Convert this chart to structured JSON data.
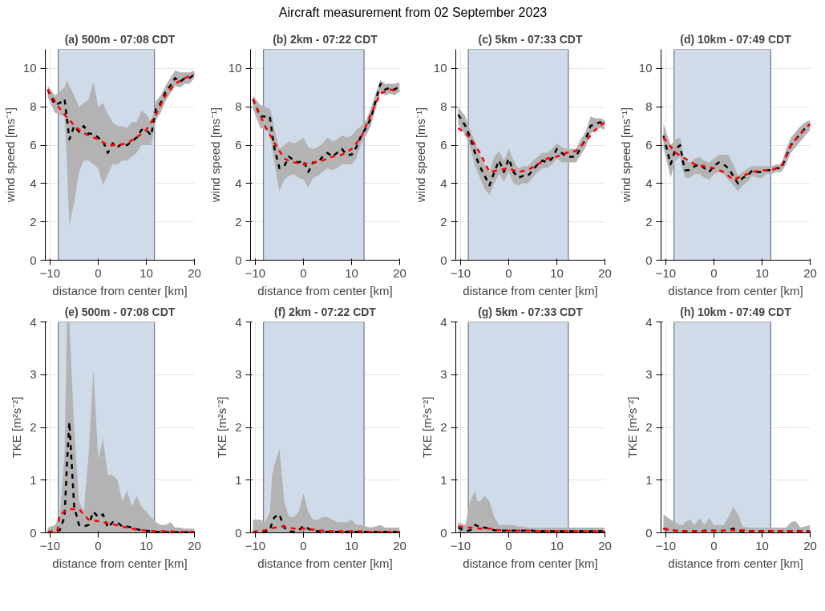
{
  "chart_data": [
    {
      "type": "line",
      "title": "(a) 500m - 07:08 CDT",
      "annotations": [
        "Aircraft measurement from 02 September 2023"
      ],
      "xlabel": "distance from center [km]",
      "ylabel": "wind speed [ms⁻¹]",
      "xlim": [
        -11,
        20
      ],
      "ylim": [
        0,
        11
      ],
      "xticks": [
        -10,
        0,
        10,
        20
      ],
      "yticks": [
        0,
        2,
        4,
        6,
        8,
        10
      ],
      "grid": true,
      "line_style": "dashed",
      "x": [
        -10.5,
        -9,
        -8,
        -7,
        -6.5,
        -6,
        -5,
        -4,
        -3,
        -2,
        -1,
        0,
        1,
        2,
        3,
        4,
        5,
        6,
        7,
        8,
        9,
        10,
        11,
        12,
        13,
        14,
        15,
        16,
        17,
        18,
        19,
        20
      ],
      "bands": [
        {
          "axis": "x",
          "from": -8.3,
          "to": 11.7,
          "color": "#d0dbea"
        }
      ],
      "series": [
        {
          "color": "#000000",
          "values": [
            8.9,
            8.1,
            8.2,
            8.4,
            7.4,
            6.3,
            7.0,
            6.7,
            7.0,
            6.6,
            6.6,
            6.4,
            6.2,
            5.6,
            6.1,
            5.9,
            6.1,
            6.0,
            6.2,
            6.4,
            6.8,
            6.8,
            6.5,
            7.9,
            8.2,
            8.8,
            9.1,
            9.5,
            9.3,
            9.5,
            9.5,
            9.7
          ],
          "lower": [
            8.5,
            7.7,
            7.6,
            7.5,
            5.0,
            1.8,
            3.0,
            4.6,
            5.2,
            5.2,
            5.0,
            4.8,
            3.9,
            4.5,
            5.0,
            5.0,
            5.2,
            5.2,
            5.4,
            5.6,
            6.0,
            6.0,
            6.0,
            7.3,
            7.7,
            8.3,
            8.7,
            9.1,
            9.0,
            9.2,
            9.2,
            9.5
          ],
          "upper": [
            9.1,
            8.6,
            8.8,
            9.0,
            9.4,
            9.1,
            8.6,
            8.0,
            8.2,
            8.4,
            9.3,
            8.0,
            8.2,
            7.6,
            7.2,
            7.0,
            7.0,
            6.9,
            7.2,
            7.2,
            7.8,
            7.6,
            7.2,
            8.3,
            8.6,
            9.1,
            9.5,
            9.9,
            9.8,
            9.8,
            9.8,
            9.9
          ]
        },
        {
          "color": "#ff0000",
          "x": [
            -10.5,
            -8,
            -6,
            -4,
            -2,
            0,
            2,
            4,
            6,
            8,
            10,
            12,
            14,
            16,
            18,
            20
          ],
          "values": [
            8.9,
            7.9,
            7.3,
            6.8,
            6.5,
            6.3,
            6.0,
            6.0,
            6.1,
            6.4,
            6.8,
            7.6,
            8.6,
            9.2,
            9.5,
            9.7
          ]
        }
      ]
    },
    {
      "type": "line",
      "title": "(b) 2km - 07:22 CDT",
      "xlabel": "distance from center [km]",
      "ylabel": "wind speed [ms⁻¹]",
      "xlim": [
        -11,
        20
      ],
      "ylim": [
        0,
        11
      ],
      "xticks": [
        -10,
        0,
        10,
        20
      ],
      "yticks": [
        0,
        2,
        4,
        6,
        8,
        10
      ],
      "grid": true,
      "line_style": "dashed",
      "x": [
        -10.5,
        -9,
        -8,
        -7,
        -6.5,
        -6,
        -5,
        -4,
        -3,
        -2,
        -1,
        0,
        1,
        2,
        3,
        4,
        5,
        6,
        7,
        8,
        9,
        10,
        11,
        12,
        13,
        14,
        15,
        16,
        17,
        18,
        19,
        20
      ],
      "bands": [
        {
          "axis": "x",
          "from": -8.3,
          "to": 12.6,
          "color": "#d0dbea"
        }
      ],
      "series": [
        {
          "color": "#000000",
          "values": [
            8.4,
            7.5,
            7.5,
            7.5,
            6.6,
            5.8,
            4.8,
            4.9,
            5.4,
            5.2,
            5.1,
            5.2,
            4.6,
            5.1,
            5.1,
            5.4,
            5.6,
            5.4,
            5.6,
            5.8,
            5.5,
            5.5,
            5.9,
            6.5,
            6.9,
            7.4,
            8.3,
            9.2,
            8.9,
            9.0,
            8.9,
            9.1
          ],
          "lower": [
            7.9,
            6.9,
            6.8,
            6.6,
            5.8,
            5.0,
            3.6,
            4.2,
            4.4,
            4.5,
            4.3,
            4.2,
            3.8,
            4.3,
            4.4,
            4.6,
            4.8,
            4.7,
            4.8,
            5.0,
            5.0,
            5.0,
            5.3,
            6.1,
            6.5,
            7.0,
            7.9,
            8.8,
            8.6,
            8.7,
            8.6,
            8.8
          ],
          "upper": [
            8.6,
            8.1,
            8.0,
            7.9,
            7.5,
            6.8,
            5.8,
            6.0,
            6.2,
            6.1,
            6.2,
            6.4,
            5.9,
            5.8,
            5.9,
            6.1,
            6.4,
            6.2,
            6.3,
            6.5,
            6.4,
            6.5,
            6.8,
            7.0,
            7.3,
            7.9,
            8.7,
            9.4,
            9.2,
            9.2,
            9.2,
            9.3
          ]
        },
        {
          "color": "#ff0000",
          "x": [
            -10.5,
            -8,
            -6,
            -4,
            -2,
            0,
            2,
            4,
            6,
            8,
            10,
            12,
            14,
            16,
            18,
            20
          ],
          "values": [
            8.4,
            7.0,
            6.1,
            5.3,
            5.1,
            5.0,
            5.1,
            5.2,
            5.4,
            5.5,
            5.8,
            6.4,
            7.6,
            8.7,
            8.9,
            8.8
          ]
        }
      ]
    },
    {
      "type": "line",
      "title": "(c) 5km - 07:33 CDT",
      "xlabel": "distance from center [km]",
      "ylabel": "wind speed [ms⁻¹]",
      "xlim": [
        -11,
        20
      ],
      "ylim": [
        0,
        11
      ],
      "xticks": [
        -10,
        0,
        10,
        20
      ],
      "yticks": [
        0,
        2,
        4,
        6,
        8,
        10
      ],
      "grid": true,
      "line_style": "dashed",
      "x": [
        -10.5,
        -9,
        -8,
        -7,
        -6.5,
        -6,
        -5,
        -4,
        -3,
        -2,
        -1,
        0,
        1,
        2,
        3,
        4,
        5,
        6,
        7,
        8,
        9,
        10,
        11,
        12,
        13,
        14,
        15,
        16,
        17,
        18,
        19,
        20
      ],
      "bands": [
        {
          "axis": "x",
          "from": -8.4,
          "to": 12.4,
          "color": "#d0dbea"
        }
      ],
      "series": [
        {
          "color": "#000000",
          "values": [
            7.6,
            7.0,
            6.4,
            5.6,
            5.2,
            4.9,
            4.4,
            3.9,
            4.6,
            5.2,
            4.6,
            5.3,
            4.6,
            4.3,
            4.4,
            4.4,
            4.7,
            5.0,
            5.2,
            5.1,
            5.3,
            5.8,
            5.6,
            5.4,
            5.4,
            5.4,
            5.9,
            6.3,
            7.0,
            7.1,
            7.2,
            7.0
          ],
          "lower": [
            7.1,
            6.5,
            5.9,
            4.9,
            4.6,
            4.3,
            3.7,
            3.4,
            4.0,
            4.5,
            4.1,
            4.6,
            4.0,
            3.9,
            4.0,
            4.0,
            4.3,
            4.6,
            4.8,
            4.8,
            5.0,
            5.3,
            5.1,
            5.1,
            5.1,
            5.1,
            5.5,
            5.9,
            6.6,
            6.8,
            6.9,
            6.8
          ],
          "upper": [
            8.0,
            7.5,
            6.8,
            6.2,
            5.8,
            5.5,
            5.0,
            4.6,
            5.4,
            5.7,
            5.2,
            5.8,
            5.2,
            4.8,
            4.9,
            4.9,
            5.2,
            5.4,
            5.6,
            5.6,
            5.8,
            6.1,
            5.9,
            5.8,
            5.8,
            5.8,
            6.3,
            6.7,
            7.5,
            7.4,
            7.4,
            7.3
          ]
        },
        {
          "color": "#ff0000",
          "x": [
            -10.5,
            -8,
            -6,
            -4,
            -2,
            0,
            2,
            4,
            6,
            8,
            10,
            12,
            14,
            16,
            18,
            20
          ],
          "values": [
            6.9,
            6.4,
            5.6,
            4.6,
            4.7,
            4.8,
            4.6,
            4.7,
            5.0,
            5.3,
            5.4,
            5.6,
            5.7,
            6.2,
            6.8,
            7.2
          ]
        }
      ]
    },
    {
      "type": "line",
      "title": "(d) 10km - 07:49 CDT",
      "xlabel": "distance from center [km]",
      "ylabel": "wind speed [ms⁻¹]",
      "xlim": [
        -11,
        20
      ],
      "ylim": [
        0,
        11
      ],
      "xticks": [
        -10,
        0,
        10,
        20
      ],
      "yticks": [
        0,
        2,
        4,
        6,
        8,
        10
      ],
      "grid": true,
      "line_style": "dashed",
      "x": [
        -10.5,
        -9,
        -8,
        -7,
        -6.5,
        -6,
        -5,
        -4,
        -3,
        -2,
        -1,
        0,
        1,
        2,
        3,
        4,
        5,
        6,
        7,
        8,
        9,
        10,
        11,
        12,
        13,
        14,
        15,
        16,
        17,
        18,
        19,
        20
      ],
      "bands": [
        {
          "axis": "x",
          "from": -8.3,
          "to": 11.8,
          "color": "#d0dbea"
        }
      ],
      "series": [
        {
          "color": "#000000",
          "values": [
            6.5,
            5.0,
            5.8,
            6.0,
            5.2,
            4.7,
            4.7,
            4.9,
            5.0,
            4.8,
            4.6,
            4.9,
            5.1,
            5.0,
            4.8,
            4.4,
            4.0,
            4.3,
            4.4,
            4.7,
            4.6,
            4.6,
            4.7,
            4.7,
            4.8,
            4.8,
            5.4,
            6.0,
            6.3,
            6.6,
            6.9,
            7.1
          ],
          "lower": [
            5.9,
            4.3,
            5.2,
            5.4,
            4.7,
            4.3,
            4.3,
            4.5,
            4.5,
            4.3,
            4.2,
            4.5,
            4.6,
            4.5,
            4.2,
            3.9,
            3.6,
            3.9,
            4.1,
            4.4,
            4.3,
            4.3,
            4.5,
            4.5,
            4.6,
            4.6,
            5.0,
            5.6,
            5.9,
            6.2,
            6.5,
            6.8
          ],
          "upper": [
            7.1,
            6.0,
            6.3,
            6.4,
            5.6,
            5.2,
            5.1,
            5.3,
            5.4,
            5.2,
            5.1,
            5.3,
            5.5,
            5.5,
            5.5,
            5.0,
            4.4,
            4.6,
            4.8,
            4.9,
            4.9,
            4.9,
            4.9,
            4.9,
            5.0,
            5.0,
            5.8,
            6.4,
            6.7,
            7.0,
            7.2,
            7.3
          ]
        },
        {
          "color": "#ff0000",
          "x": [
            -10.5,
            -8,
            -6,
            -4,
            -2,
            0,
            2,
            4,
            6,
            8,
            10,
            12,
            14,
            16,
            18,
            20
          ],
          "values": [
            6.4,
            5.6,
            5.3,
            5.0,
            4.9,
            4.8,
            4.6,
            4.2,
            4.4,
            4.6,
            4.7,
            4.7,
            4.9,
            6.0,
            6.6,
            7.1
          ]
        }
      ]
    },
    {
      "type": "line",
      "title": "(e) 500m - 07:08 CDT",
      "xlabel": "distance from center [km]",
      "ylabel": "TKE [m²s⁻²]",
      "xlim": [
        -11,
        20
      ],
      "ylim": [
        0,
        4
      ],
      "xticks": [
        -10,
        0,
        10,
        20
      ],
      "yticks": [
        0,
        1,
        2,
        3,
        4
      ],
      "grid": true,
      "line_style": "dashed",
      "x": [
        -10.5,
        -9,
        -8,
        -7,
        -6.5,
        -6,
        -5,
        -4,
        -3,
        -2,
        -1,
        0,
        1,
        2,
        3,
        4,
        5,
        6,
        7,
        8,
        9,
        10,
        11,
        12,
        13,
        14,
        15,
        16,
        17,
        18,
        19,
        20
      ],
      "bands": [
        {
          "axis": "x",
          "from": -8.3,
          "to": 11.7,
          "color": "#d0dbea"
        }
      ],
      "series": [
        {
          "color": "#000000",
          "values": [
            0.0,
            0.02,
            0.05,
            0.3,
            1.3,
            2.1,
            0.5,
            0.15,
            0.12,
            0.15,
            0.4,
            0.3,
            0.35,
            0.1,
            0.2,
            0.2,
            0.12,
            0.12,
            0.1,
            0.07,
            0.05,
            0.04,
            0.03,
            0.02,
            0.02,
            0.01,
            0.01,
            0.01,
            0.01,
            0.01,
            0.01,
            0.01
          ],
          "lower": [
            0,
            0,
            0,
            0,
            0,
            0,
            0,
            0,
            0,
            0,
            0,
            0,
            0,
            0,
            0,
            0,
            0,
            0,
            0,
            0,
            0,
            0,
            0,
            0,
            0,
            0,
            0,
            0,
            0,
            0,
            0,
            0
          ],
          "upper": [
            0.1,
            0.15,
            0.3,
            1.5,
            4.0,
            4.0,
            2.0,
            0.6,
            0.4,
            1.5,
            3.1,
            1.4,
            1.8,
            1.1,
            1.1,
            1.0,
            0.6,
            0.8,
            0.5,
            0.7,
            0.5,
            0.4,
            0.3,
            0.2,
            0.15,
            0.15,
            0.2,
            0.1,
            0.1,
            0.08,
            0.08,
            0.08
          ]
        },
        {
          "color": "#ff0000",
          "x": [
            -10.5,
            -8.5,
            -8,
            -6,
            -4,
            -2,
            0,
            2,
            4,
            6,
            8,
            10,
            12,
            14,
            17,
            20
          ],
          "values": [
            0.02,
            0.03,
            0.35,
            0.45,
            0.45,
            0.25,
            0.22,
            0.18,
            0.14,
            0.1,
            0.06,
            0.04,
            0.03,
            0.03,
            0.02,
            0.02
          ]
        }
      ]
    },
    {
      "type": "line",
      "title": "(f) 2km - 07:22 CDT",
      "xlabel": "distance from center [km]",
      "ylabel": "TKE [m²s⁻²]",
      "xlim": [
        -11,
        20
      ],
      "ylim": [
        0,
        4
      ],
      "xticks": [
        -10,
        0,
        10,
        20
      ],
      "yticks": [
        0,
        1,
        2,
        3,
        4
      ],
      "grid": true,
      "line_style": "dashed",
      "x": [
        -10.5,
        -9,
        -8,
        -7,
        -6.5,
        -6,
        -5,
        -4,
        -3,
        -2,
        -1,
        0,
        1,
        2,
        3,
        4,
        5,
        6,
        7,
        8,
        9,
        10,
        11,
        12,
        13,
        14,
        15,
        16,
        17,
        18,
        19,
        20
      ],
      "bands": [
        {
          "axis": "x",
          "from": -8.3,
          "to": 12.6,
          "color": "#d0dbea"
        }
      ],
      "series": [
        {
          "color": "#000000",
          "values": [
            0.0,
            0.02,
            0.02,
            0.05,
            0.2,
            0.3,
            0.35,
            0.1,
            0.03,
            0.02,
            0.05,
            0.13,
            0.08,
            0.04,
            0.03,
            0.02,
            0.02,
            0.02,
            0.02,
            0.02,
            0.02,
            0.02,
            0.02,
            0.02,
            0.02,
            0.02,
            0.02,
            0.02,
            0.02,
            0.02,
            0.02,
            0.02
          ],
          "lower": [
            0,
            0,
            0,
            0,
            0,
            0,
            0,
            0,
            0,
            0,
            0,
            0,
            0,
            0,
            0,
            0,
            0,
            0,
            0,
            0,
            0,
            0,
            0,
            0,
            0,
            0,
            0,
            0,
            0,
            0,
            0,
            0
          ],
          "upper": [
            0.25,
            0.25,
            0.2,
            0.4,
            1.1,
            1.3,
            1.6,
            0.6,
            0.3,
            0.3,
            0.4,
            0.75,
            0.4,
            0.25,
            0.25,
            0.3,
            0.3,
            0.25,
            0.2,
            0.2,
            0.2,
            0.25,
            0.15,
            0.15,
            0.12,
            0.1,
            0.12,
            0.15,
            0.1,
            0.1,
            0.1,
            0.1
          ]
        },
        {
          "color": "#ff0000",
          "x": [
            -10.5,
            -8,
            -6,
            -4,
            -2,
            0,
            2,
            4,
            6,
            8,
            10,
            12,
            14,
            16,
            18,
            20
          ],
          "values": [
            0.02,
            0.05,
            0.1,
            0.12,
            0.08,
            0.08,
            0.06,
            0.04,
            0.03,
            0.03,
            0.03,
            0.03,
            0.02,
            0.02,
            0.02,
            0.02
          ]
        }
      ]
    },
    {
      "type": "line",
      "title": "(g) 5km - 07:33 CDT",
      "xlabel": "distance from center [km]",
      "ylabel": "TKE [m²s⁻²]",
      "xlim": [
        -11,
        20
      ],
      "ylim": [
        0,
        4
      ],
      "xticks": [
        -10,
        0,
        10,
        20
      ],
      "yticks": [
        0,
        1,
        2,
        3,
        4
      ],
      "grid": true,
      "line_style": "dashed",
      "x": [
        -10.5,
        -9,
        -8,
        -7,
        -6.5,
        -6,
        -5,
        -4,
        -3,
        -2,
        -1,
        0,
        1,
        2,
        3,
        4,
        5,
        6,
        7,
        8,
        9,
        10,
        11,
        12,
        13,
        14,
        15,
        16,
        17,
        18,
        19,
        20
      ],
      "bands": [
        {
          "axis": "x",
          "from": -8.4,
          "to": 12.4,
          "color": "#d0dbea"
        }
      ],
      "series": [
        {
          "color": "#000000",
          "values": [
            0.1,
            0.03,
            0.05,
            0.15,
            0.13,
            0.1,
            0.1,
            0.08,
            0.05,
            0.04,
            0.04,
            0.04,
            0.04,
            0.04,
            0.04,
            0.04,
            0.04,
            0.03,
            0.03,
            0.03,
            0.03,
            0.03,
            0.03,
            0.03,
            0.03,
            0.03,
            0.03,
            0.03,
            0.03,
            0.03,
            0.03,
            0.03
          ],
          "lower": [
            0,
            0,
            0,
            0,
            0,
            0,
            0,
            0,
            0,
            0,
            0,
            0,
            0,
            0,
            0,
            0,
            0,
            0,
            0,
            0,
            0,
            0,
            0,
            0,
            0,
            0,
            0,
            0,
            0,
            0,
            0,
            0
          ],
          "upper": [
            0.2,
            0.15,
            0.6,
            0.8,
            0.6,
            0.6,
            0.7,
            0.6,
            0.3,
            0.15,
            0.15,
            0.15,
            0.15,
            0.12,
            0.12,
            0.1,
            0.1,
            0.1,
            0.1,
            0.1,
            0.1,
            0.1,
            0.1,
            0.1,
            0.1,
            0.1,
            0.1,
            0.1,
            0.1,
            0.1,
            0.1,
            0.1
          ]
        },
        {
          "color": "#ff0000",
          "x": [
            -10.5,
            -8,
            -6,
            -4,
            -2,
            0,
            2,
            4,
            6,
            8,
            10,
            12,
            14,
            16,
            18,
            20
          ],
          "values": [
            0.12,
            0.1,
            0.08,
            0.08,
            0.05,
            0.04,
            0.04,
            0.04,
            0.03,
            0.03,
            0.03,
            0.03,
            0.03,
            0.03,
            0.03,
            0.02
          ]
        }
      ]
    },
    {
      "type": "line",
      "title": "(h) 10km - 07:49 CDT",
      "xlabel": "distance from center [km]",
      "ylabel": "TKE [m²s⁻²]",
      "xlim": [
        -11,
        20
      ],
      "ylim": [
        0,
        4
      ],
      "xticks": [
        -10,
        0,
        10,
        20
      ],
      "yticks": [
        0,
        1,
        2,
        3,
        4
      ],
      "grid": true,
      "line_style": "dashed",
      "x": [
        -10.5,
        -9,
        -8,
        -7,
        -6.5,
        -6,
        -5,
        -4,
        -3,
        -2,
        -1,
        0,
        1,
        2,
        3,
        4,
        5,
        6,
        7,
        8,
        9,
        10,
        11,
        12,
        13,
        14,
        15,
        16,
        17,
        18,
        19,
        20
      ],
      "bands": [
        {
          "axis": "x",
          "from": -8.3,
          "to": 11.8,
          "color": "#d0dbea"
        }
      ],
      "series": [
        {
          "color": "#000000",
          "values": [
            0.08,
            0.05,
            0.04,
            0.03,
            0.03,
            0.03,
            0.03,
            0.03,
            0.03,
            0.04,
            0.04,
            0.04,
            0.03,
            0.04,
            0.05,
            0.08,
            0.04,
            0.03,
            0.03,
            0.03,
            0.03,
            0.03,
            0.03,
            0.03,
            0.03,
            0.03,
            0.03,
            0.03,
            0.04,
            0.03,
            0.03,
            0.03
          ],
          "lower": [
            0,
            0,
            0,
            0,
            0,
            0,
            0,
            0,
            0,
            0,
            0,
            0,
            0,
            0,
            0,
            0,
            0,
            0,
            0,
            0,
            0,
            0,
            0,
            0,
            0,
            0,
            0,
            0,
            0,
            0,
            0,
            0
          ],
          "upper": [
            0.35,
            0.25,
            0.2,
            0.15,
            0.15,
            0.2,
            0.25,
            0.15,
            0.28,
            0.15,
            0.28,
            0.15,
            0.15,
            0.15,
            0.3,
            0.5,
            0.35,
            0.12,
            0.1,
            0.1,
            0.1,
            0.1,
            0.1,
            0.1,
            0.1,
            0.1,
            0.1,
            0.2,
            0.22,
            0.1,
            0.12,
            0.15
          ]
        },
        {
          "color": "#ff0000",
          "x": [
            -10.5,
            -8,
            -6,
            -4,
            -2,
            0,
            2,
            4,
            6,
            8,
            10,
            12,
            14,
            16,
            18,
            20
          ],
          "values": [
            0.08,
            0.04,
            0.03,
            0.03,
            0.03,
            0.04,
            0.04,
            0.05,
            0.05,
            0.03,
            0.03,
            0.03,
            0.03,
            0.03,
            0.03,
            0.03
          ]
        }
      ]
    }
  ]
}
